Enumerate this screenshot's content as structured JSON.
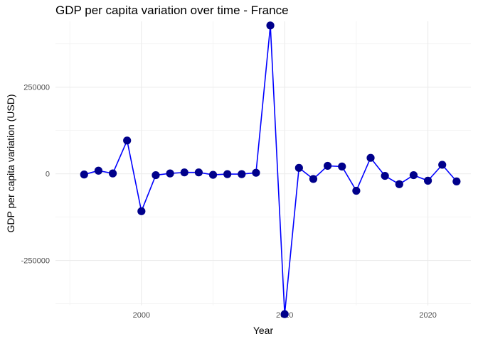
{
  "chart_data": {
    "type": "line",
    "title": "GDP per capita variation over time - France",
    "xlabel": "Year",
    "ylabel": "GDP per capita variation (USD)",
    "xlim": [
      1994,
      2023
    ],
    "ylim": [
      -380000,
      440000
    ],
    "x_ticks": [
      2000,
      2010,
      2020
    ],
    "x_minor_ticks": [
      1995,
      2005,
      2015
    ],
    "y_ticks": [
      -250000,
      0,
      250000
    ],
    "y_minor_ticks": [
      -375000,
      -125000,
      125000,
      375000
    ],
    "grid": true,
    "line_color": "#0000FF",
    "point_color": "#00008B",
    "series": [
      {
        "x": [
          1996,
          1997,
          1998,
          1999,
          2000,
          2001,
          2002,
          2003,
          2004,
          2005,
          2006,
          2007,
          2008,
          2009,
          2010,
          2011,
          2012,
          2013,
          2014,
          2015,
          2016,
          2017,
          2018,
          2019,
          2020,
          2021,
          2022
        ],
        "values": [
          -2000,
          9000,
          1000,
          96000,
          -108000,
          -4000,
          1000,
          4000,
          4000,
          -3000,
          -1000,
          -1000,
          3000,
          428000,
          -405000,
          17000,
          -15000,
          23000,
          21000,
          -49000,
          46000,
          -6000,
          -30000,
          -4000,
          -20000,
          26000,
          -22000
        ]
      }
    ]
  }
}
